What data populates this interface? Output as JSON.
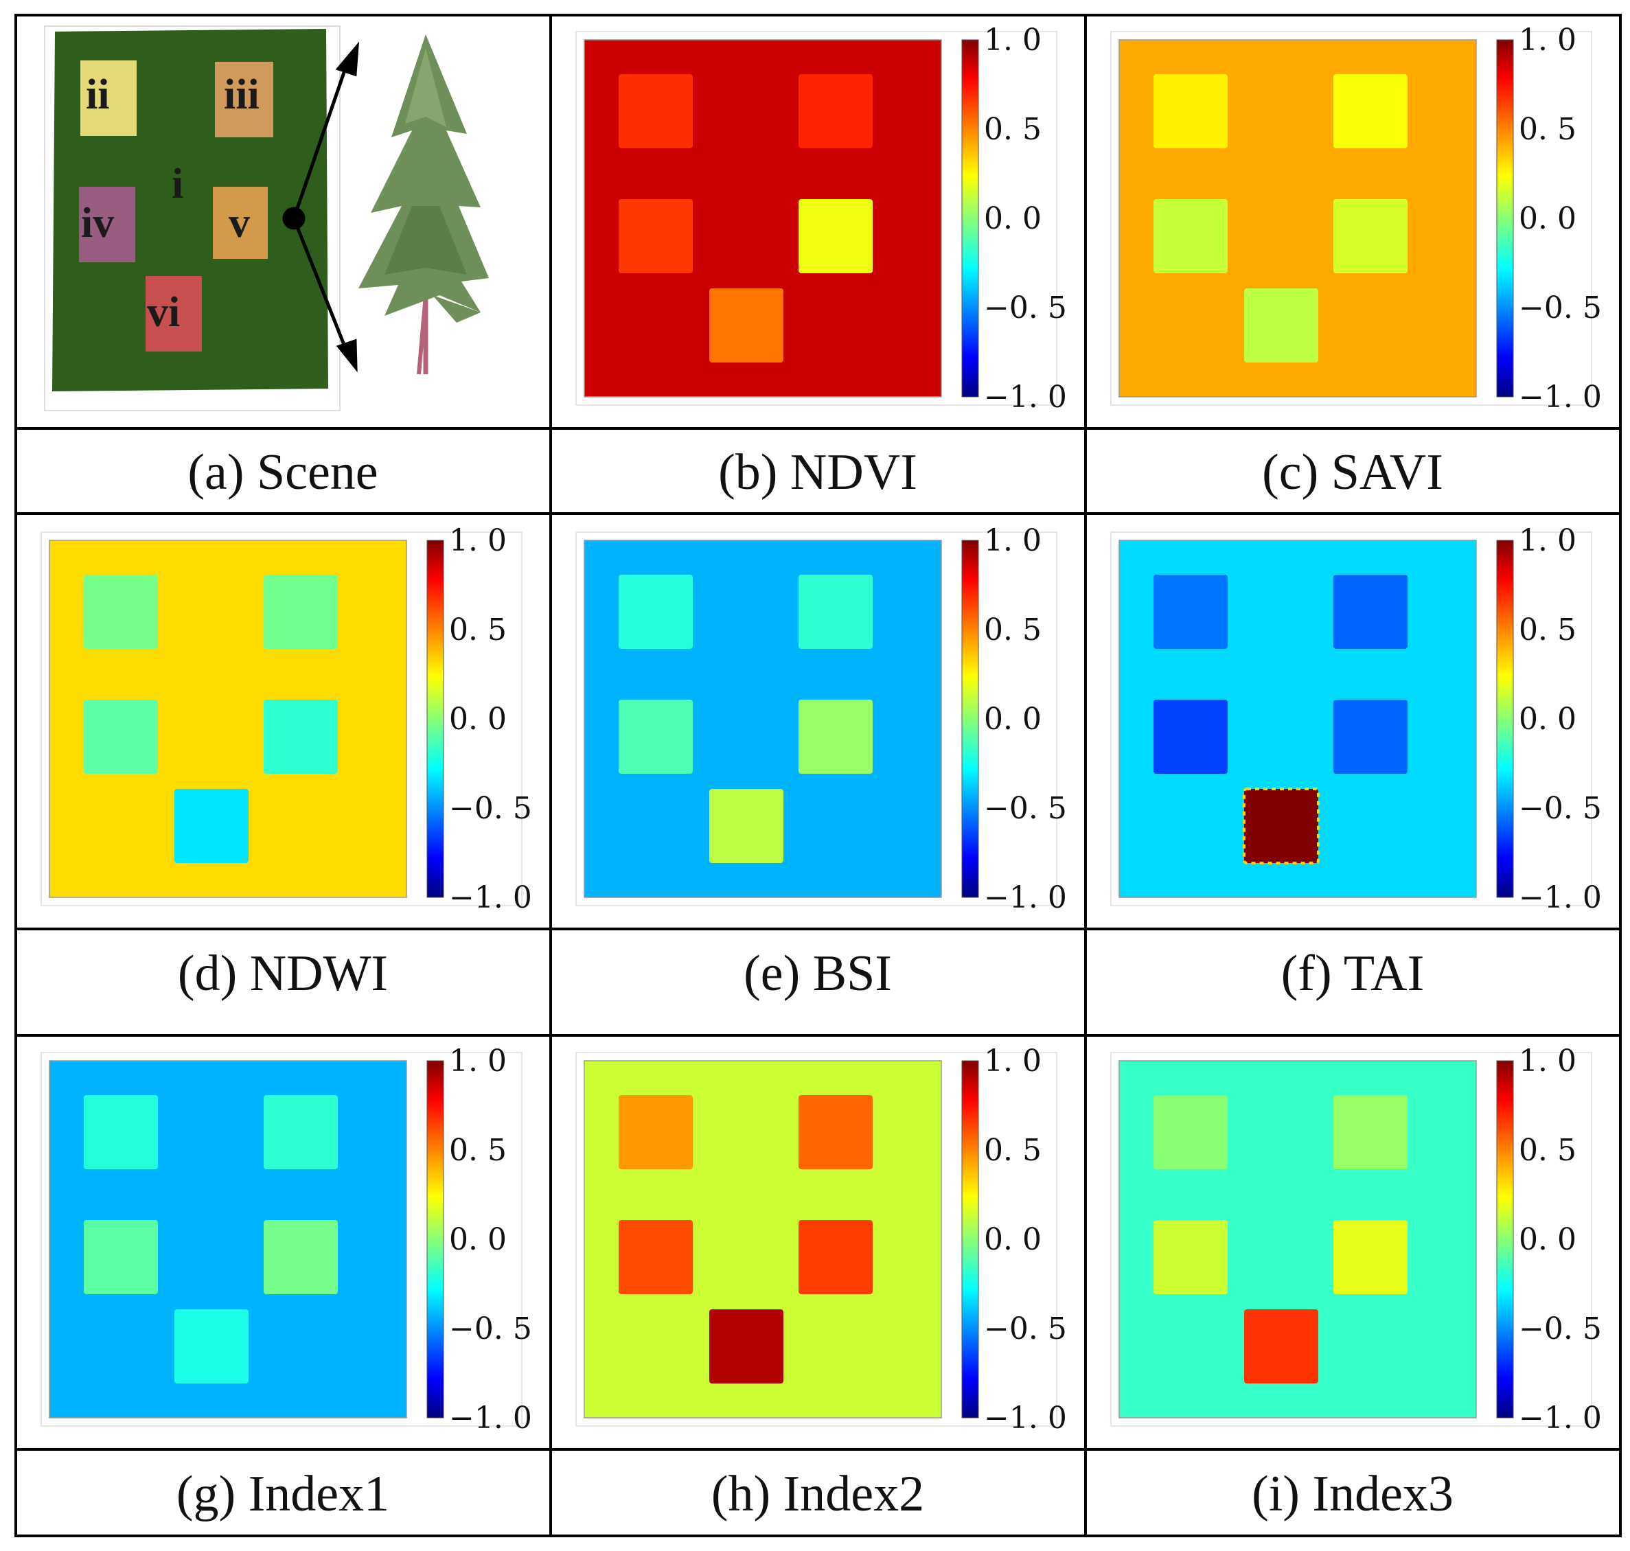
{
  "panels": [
    {
      "id": "a",
      "caption": "(a) Scene",
      "type": "scene"
    },
    {
      "id": "b",
      "caption": "(b) NDVI",
      "type": "map",
      "background": 0.85,
      "squares": [
        0.66,
        0.68,
        0.64,
        0.22,
        0.52
      ]
    },
    {
      "id": "c",
      "caption": "(c) SAVI",
      "type": "map",
      "background": 0.42,
      "squares": [
        0.28,
        0.24,
        0.14,
        0.17,
        0.12
      ]
    },
    {
      "id": "d",
      "caption": "(d) NDWI",
      "type": "map",
      "background": 0.32,
      "squares": [
        -0.02,
        -0.03,
        -0.07,
        -0.16,
        -0.3
      ]
    },
    {
      "id": "e",
      "caption": "(e) BSI",
      "type": "map",
      "background": -0.4,
      "squares": [
        -0.18,
        -0.16,
        -0.1,
        0.05,
        0.12
      ]
    },
    {
      "id": "f",
      "caption": "(f) TAI",
      "type": "map",
      "background": -0.32,
      "squares": [
        -0.52,
        -0.55,
        -0.62,
        -0.55,
        1.0
      ]
    },
    {
      "id": "g",
      "caption": "(g) Index1",
      "type": "map",
      "background": -0.4,
      "squares": [
        -0.18,
        -0.16,
        -0.07,
        -0.02,
        -0.2
      ]
    },
    {
      "id": "h",
      "caption": "(h) Index2",
      "type": "map",
      "background": 0.15,
      "squares": [
        0.45,
        0.55,
        0.6,
        0.63,
        0.9
      ]
    },
    {
      "id": "i",
      "caption": "(i) Index3",
      "type": "map",
      "background": -0.14,
      "squares": [
        0.02,
        0.05,
        0.15,
        0.2,
        0.65
      ]
    }
  ],
  "colorbar_ticks": [
    "1. 0",
    "0. 5",
    "0. 0",
    "−0. 5",
    "−1. 0"
  ],
  "scene": {
    "region_labels": [
      "ii",
      "iii",
      "i",
      "iv",
      "v",
      "vi"
    ],
    "region_colors": [
      "#e4d979",
      "#cf9a5c",
      "#2f5e1c",
      "#9a5d82",
      "#d49a4c",
      "#c85050"
    ],
    "background_color": "#2f5e1c"
  },
  "colormap": "jet"
}
